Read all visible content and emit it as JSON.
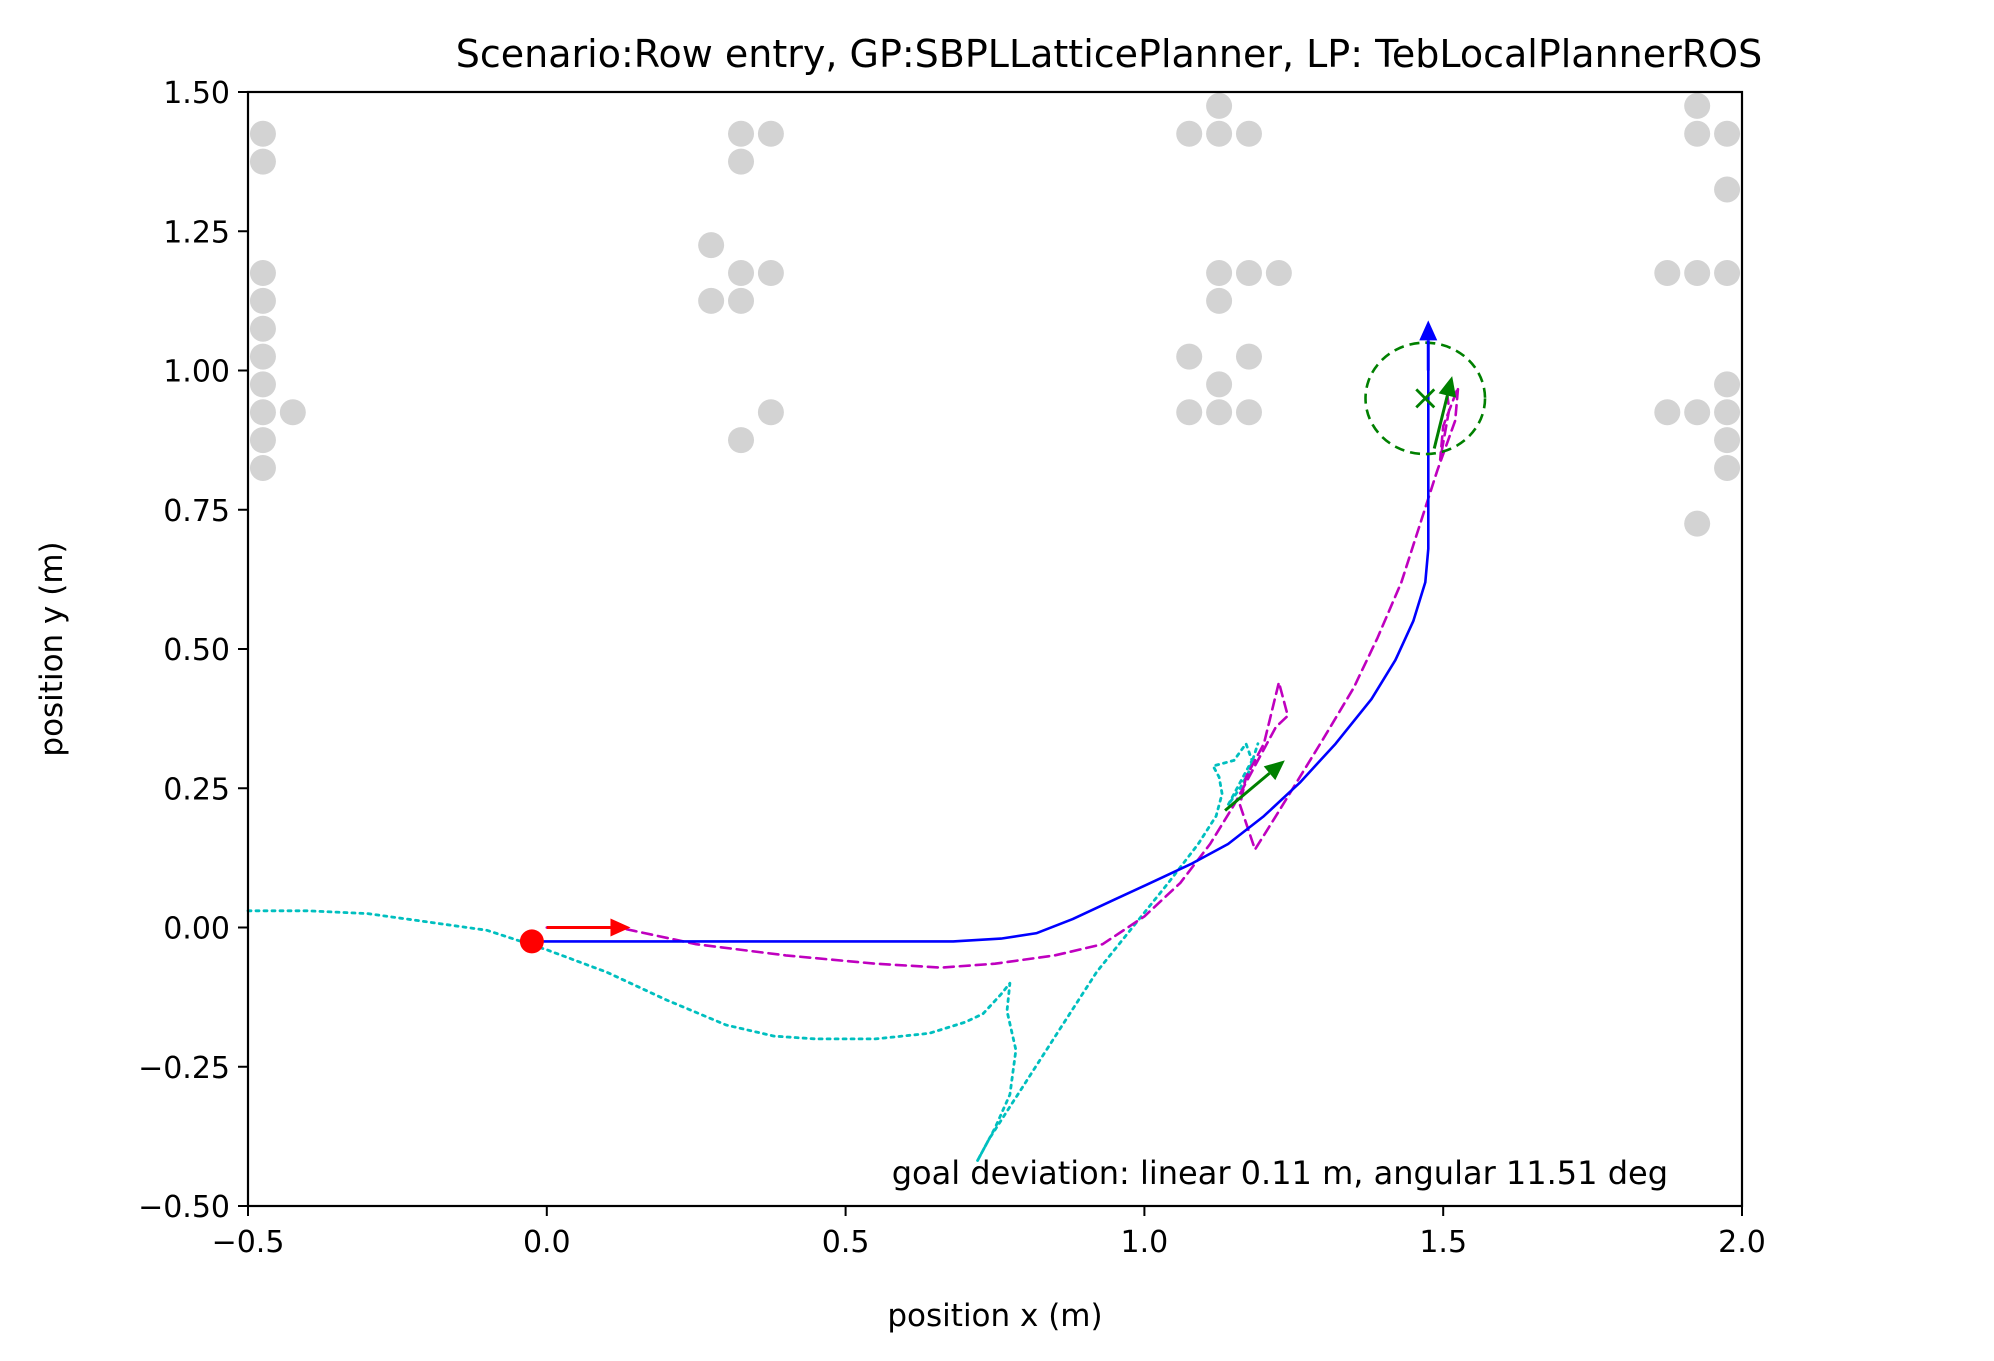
{
  "chart_data": {
    "type": "scatter",
    "title": "Scenario:Row entry, GP:SBPLLatticePlanner, LP: TebLocalPlannerROS",
    "xlabel": "position x (m)",
    "ylabel": "position y (m)",
    "xlim": [
      -0.5,
      2.0
    ],
    "ylim": [
      -0.5,
      1.5
    ],
    "xticks": [
      -0.5,
      0.0,
      0.5,
      1.0,
      1.5,
      2.0
    ],
    "xtick_labels": [
      "−0.5",
      "0.0",
      "0.5",
      "1.0",
      "1.5",
      "2.0"
    ],
    "yticks": [
      -0.5,
      -0.25,
      0.0,
      0.25,
      0.5,
      0.75,
      1.0,
      1.25,
      1.5
    ],
    "ytick_labels": [
      "−0.50",
      "−0.25",
      "0.00",
      "0.25",
      "0.50",
      "0.75",
      "1.00",
      "1.25",
      "1.50"
    ],
    "grid": false,
    "annotation": "goal deviation: linear 0.11 m, angular 11.51 deg",
    "colors": {
      "obstacle": "#d3d3d3",
      "global_plan": "#0000ff",
      "local_plan": "#bf00bf",
      "odometry": "#00bfbf",
      "start": "#ff0000",
      "goal": "#008000"
    },
    "obstacles": [
      [
        -0.475,
        1.425
      ],
      [
        -0.475,
        1.375
      ],
      [
        -0.475,
        1.175
      ],
      [
        -0.475,
        1.125
      ],
      [
        -0.475,
        1.075
      ],
      [
        -0.475,
        1.025
      ],
      [
        -0.475,
        0.975
      ],
      [
        -0.475,
        0.925
      ],
      [
        -0.475,
        0.875
      ],
      [
        -0.475,
        0.825
      ],
      [
        -0.425,
        0.925
      ],
      [
        0.275,
        1.225
      ],
      [
        0.275,
        1.125
      ],
      [
        0.325,
        1.425
      ],
      [
        0.325,
        1.375
      ],
      [
        0.325,
        1.175
      ],
      [
        0.325,
        1.125
      ],
      [
        0.325,
        0.875
      ],
      [
        0.375,
        1.425
      ],
      [
        0.375,
        1.175
      ],
      [
        0.375,
        0.925
      ],
      [
        1.075,
        1.425
      ],
      [
        1.075,
        1.025
      ],
      [
        1.075,
        0.925
      ],
      [
        1.125,
        1.475
      ],
      [
        1.125,
        1.425
      ],
      [
        1.125,
        1.175
      ],
      [
        1.125,
        1.125
      ],
      [
        1.125,
        0.975
      ],
      [
        1.125,
        0.925
      ],
      [
        1.175,
        1.425
      ],
      [
        1.175,
        1.175
      ],
      [
        1.175,
        1.025
      ],
      [
        1.175,
        0.925
      ],
      [
        1.225,
        1.175
      ],
      [
        1.875,
        1.175
      ],
      [
        1.875,
        0.925
      ],
      [
        1.925,
        1.475
      ],
      [
        1.925,
        1.425
      ],
      [
        1.925,
        1.175
      ],
      [
        1.925,
        0.925
      ],
      [
        1.925,
        0.725
      ],
      [
        1.975,
        1.425
      ],
      [
        1.975,
        1.325
      ],
      [
        1.975,
        1.175
      ],
      [
        1.975,
        0.975
      ],
      [
        1.975,
        0.925
      ],
      [
        1.975,
        0.875
      ],
      [
        1.975,
        0.825
      ]
    ],
    "start": {
      "x": -0.025,
      "y": -0.025
    },
    "start_arrow": {
      "x": 0.0,
      "y": 0.0,
      "dx": 0.14,
      "dy": 0.0
    },
    "global_plan_arrow": {
      "x": 1.475,
      "y": 1.0,
      "dx": 0.0,
      "dy": 0.09
    },
    "goal": {
      "x": 1.47,
      "y": 0.95,
      "radius": 0.1
    },
    "goal_arrows": [
      {
        "x": 1.135,
        "y": 0.21,
        "dx": 0.1,
        "dy": 0.09
      },
      {
        "x": 1.485,
        "y": 0.86,
        "dx": 0.03,
        "dy": 0.13
      }
    ],
    "series": [
      {
        "role": "global_plan",
        "points": [
          [
            -0.025,
            -0.025
          ],
          [
            0.2,
            -0.025
          ],
          [
            0.5,
            -0.025
          ],
          [
            0.68,
            -0.025
          ],
          [
            0.76,
            -0.02
          ],
          [
            0.82,
            -0.01
          ],
          [
            0.88,
            0.015
          ],
          [
            0.95,
            0.05
          ],
          [
            1.02,
            0.085
          ],
          [
            1.08,
            0.115
          ],
          [
            1.14,
            0.15
          ],
          [
            1.2,
            0.2
          ],
          [
            1.26,
            0.26
          ],
          [
            1.32,
            0.33
          ],
          [
            1.38,
            0.41
          ],
          [
            1.42,
            0.48
          ],
          [
            1.45,
            0.55
          ],
          [
            1.47,
            0.62
          ],
          [
            1.475,
            0.68
          ],
          [
            1.475,
            0.75
          ],
          [
            1.475,
            0.85
          ],
          [
            1.475,
            1.0
          ]
        ]
      },
      {
        "role": "local_plan",
        "points": [
          [
            0.0,
            0.0
          ],
          [
            0.12,
            0.0
          ],
          [
            0.25,
            -0.03
          ],
          [
            0.4,
            -0.05
          ],
          [
            0.55,
            -0.065
          ],
          [
            0.66,
            -0.072
          ],
          [
            0.75,
            -0.065
          ],
          [
            0.85,
            -0.05
          ],
          [
            0.93,
            -0.03
          ],
          [
            1.0,
            0.02
          ],
          [
            1.06,
            0.08
          ],
          [
            1.11,
            0.15
          ],
          [
            1.15,
            0.22
          ],
          [
            1.19,
            0.3
          ],
          [
            1.22,
            0.36
          ],
          [
            1.24,
            0.38
          ],
          [
            1.225,
            0.44
          ],
          [
            1.2,
            0.33
          ],
          [
            1.17,
            0.27
          ],
          [
            1.16,
            0.22
          ],
          [
            1.185,
            0.14
          ],
          [
            1.22,
            0.2
          ],
          [
            1.26,
            0.27
          ],
          [
            1.3,
            0.34
          ],
          [
            1.35,
            0.43
          ],
          [
            1.39,
            0.52
          ],
          [
            1.43,
            0.62
          ],
          [
            1.46,
            0.72
          ],
          [
            1.49,
            0.82
          ],
          [
            1.51,
            0.88
          ],
          [
            1.52,
            0.91
          ],
          [
            1.525,
            0.97
          ],
          [
            1.5,
            0.9
          ],
          [
            1.495,
            0.84
          ],
          [
            1.51,
            0.93
          ],
          [
            1.505,
            0.97
          ]
        ]
      },
      {
        "role": "odometry",
        "points": [
          [
            -0.5,
            0.03
          ],
          [
            -0.4,
            0.03
          ],
          [
            -0.3,
            0.025
          ],
          [
            -0.2,
            0.01
          ],
          [
            -0.1,
            -0.005
          ],
          [
            0.0,
            -0.04
          ],
          [
            0.1,
            -0.08
          ],
          [
            0.2,
            -0.13
          ],
          [
            0.3,
            -0.175
          ],
          [
            0.38,
            -0.195
          ],
          [
            0.45,
            -0.2
          ],
          [
            0.55,
            -0.2
          ],
          [
            0.64,
            -0.19
          ],
          [
            0.7,
            -0.17
          ],
          [
            0.73,
            -0.155
          ],
          [
            0.76,
            -0.12
          ],
          [
            0.775,
            -0.1
          ],
          [
            0.77,
            -0.15
          ],
          [
            0.785,
            -0.22
          ],
          [
            0.775,
            -0.3
          ],
          [
            0.75,
            -0.36
          ],
          [
            0.72,
            -0.42
          ],
          [
            0.74,
            -0.38
          ],
          [
            0.8,
            -0.28
          ],
          [
            0.86,
            -0.18
          ],
          [
            0.92,
            -0.08
          ],
          [
            0.98,
            0.0
          ],
          [
            1.04,
            0.08
          ],
          [
            1.09,
            0.15
          ],
          [
            1.12,
            0.2
          ],
          [
            1.13,
            0.24
          ],
          [
            1.125,
            0.27
          ],
          [
            1.115,
            0.29
          ],
          [
            1.15,
            0.3
          ],
          [
            1.17,
            0.33
          ],
          [
            1.18,
            0.3
          ],
          [
            1.16,
            0.26
          ],
          [
            1.14,
            0.22
          ],
          [
            1.16,
            0.25
          ],
          [
            1.175,
            0.28
          ],
          [
            1.19,
            0.33
          ]
        ]
      }
    ]
  }
}
